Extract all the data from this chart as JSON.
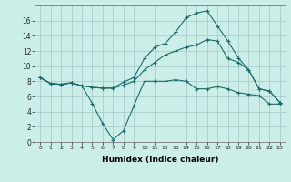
{
  "xlabel": "Humidex (Indice chaleur)",
  "bg_color": "#cceee8",
  "grid_color": "#aacccc",
  "line_color": "#1a6b6b",
  "xlim": [
    -0.5,
    23.5
  ],
  "ylim": [
    0,
    18
  ],
  "xticks": [
    0,
    1,
    2,
    3,
    4,
    5,
    6,
    7,
    8,
    9,
    10,
    11,
    12,
    13,
    14,
    15,
    16,
    17,
    18,
    19,
    20,
    21,
    22,
    23
  ],
  "yticks": [
    0,
    2,
    4,
    6,
    8,
    10,
    12,
    14,
    16
  ],
  "line1_x": [
    0,
    1,
    2,
    3,
    4,
    5,
    6,
    7,
    8,
    9,
    10,
    11,
    12,
    13,
    14,
    15,
    16,
    17,
    18,
    19,
    20,
    21,
    22,
    23
  ],
  "line1_y": [
    8.5,
    7.7,
    7.6,
    7.8,
    7.4,
    5.1,
    2.4,
    0.3,
    1.5,
    4.8,
    8.0,
    8.0,
    8.0,
    8.2,
    8.0,
    7.0,
    7.0,
    7.3,
    7.0,
    6.5,
    6.3,
    6.1,
    5.0,
    5.0
  ],
  "line2_x": [
    0,
    1,
    2,
    3,
    4,
    5,
    6,
    7,
    8,
    9,
    10,
    11,
    12,
    13,
    14,
    15,
    16,
    17,
    18,
    19,
    20,
    21,
    22,
    23
  ],
  "line2_y": [
    8.5,
    7.7,
    7.6,
    7.8,
    7.4,
    7.2,
    7.1,
    7.1,
    7.9,
    8.5,
    11.0,
    12.5,
    13.0,
    14.5,
    16.4,
    17.0,
    17.3,
    15.3,
    13.3,
    11.1,
    9.5,
    7.0,
    6.7,
    5.2
  ],
  "line3_x": [
    0,
    1,
    2,
    3,
    4,
    5,
    6,
    7,
    8,
    9,
    10,
    11,
    12,
    13,
    14,
    15,
    16,
    17,
    18,
    19,
    20,
    21,
    22,
    23
  ],
  "line3_y": [
    8.5,
    7.7,
    7.6,
    7.8,
    7.4,
    7.2,
    7.1,
    7.1,
    7.5,
    8.0,
    9.5,
    10.5,
    11.5,
    12.0,
    12.5,
    12.8,
    13.5,
    13.3,
    11.0,
    10.5,
    9.5,
    7.0,
    6.7,
    5.2
  ]
}
